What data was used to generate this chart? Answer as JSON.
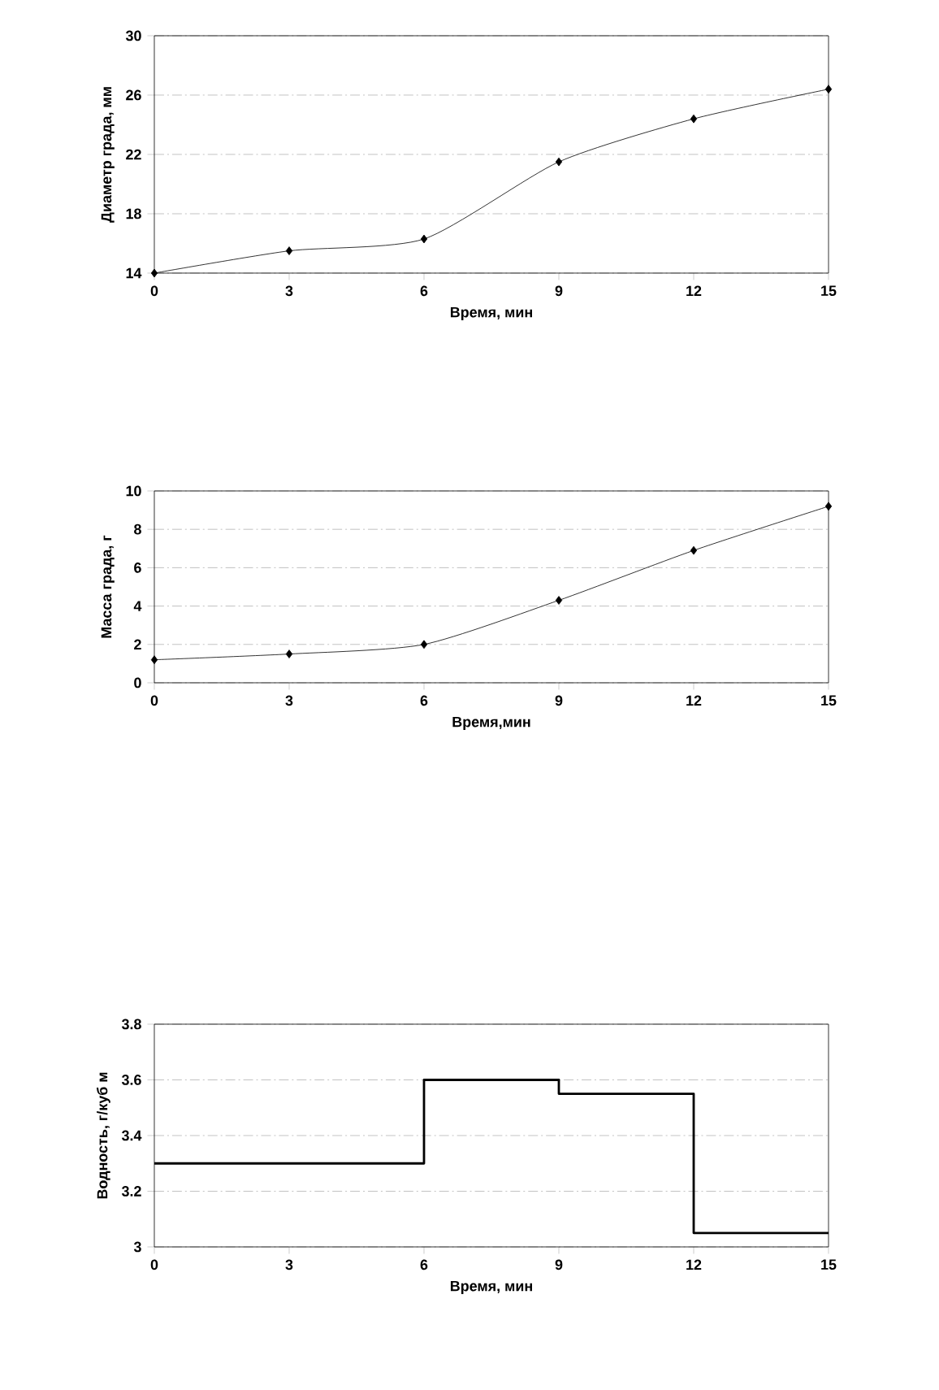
{
  "chart_data": [
    {
      "type": "line",
      "xlabel": "Время, мин",
      "ylabel": "Диаметр града, мм",
      "x": [
        0,
        3,
        6,
        9,
        12,
        15
      ],
      "series": [
        {
          "color": "#000000",
          "values": [
            14,
            15.5,
            16.3,
            21.5,
            24.4,
            26.4
          ]
        }
      ],
      "xlim": [
        0,
        15
      ],
      "xticks": [
        0,
        3,
        6,
        9,
        12,
        15
      ],
      "ylim": [
        14,
        30
      ],
      "yticks": [
        14,
        18,
        22,
        26,
        30
      ],
      "grid": "y",
      "marker": "diamond",
      "line_style": "solid"
    },
    {
      "type": "line",
      "xlabel": "Время,мин",
      "ylabel": "Масса града, г",
      "x": [
        0,
        3,
        6,
        9,
        12,
        15
      ],
      "series": [
        {
          "color": "#000000",
          "values": [
            1.2,
            1.5,
            2,
            4.3,
            6.9,
            9.2
          ]
        }
      ],
      "xlim": [
        0,
        15
      ],
      "xticks": [
        0,
        3,
        6,
        9,
        12,
        15
      ],
      "ylim": [
        0,
        10
      ],
      "yticks": [
        0,
        2,
        4,
        6,
        8,
        10
      ],
      "grid": "y",
      "marker": "diamond",
      "line_style": "solid"
    },
    {
      "type": "step",
      "xlabel": "Время, мин",
      "ylabel": "Водность, г/куб м",
      "x": [
        0,
        6,
        9,
        12,
        15
      ],
      "series": [
        {
          "color": "#000000",
          "values": [
            3.3,
            3.6,
            3.55,
            3.05,
            3.05
          ]
        }
      ],
      "xlim": [
        0,
        15
      ],
      "xticks": [
        0,
        3,
        6,
        9,
        12,
        15
      ],
      "ylim": [
        3,
        3.8
      ],
      "yticks": [
        3,
        3.2,
        3.4,
        3.6,
        3.8
      ],
      "grid": "y",
      "line_style": "solid"
    }
  ]
}
